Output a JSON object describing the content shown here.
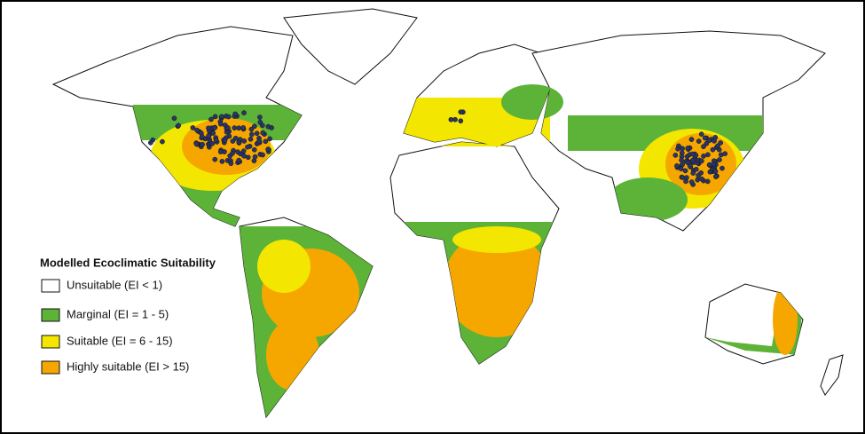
{
  "legend": {
    "title": "Modelled Ecoclimatic Suitability",
    "items": [
      {
        "label": "Unsuitable  (EI < 1)",
        "color": "#ffffff"
      },
      {
        "label": "Marginal (EI = 1 - 5)",
        "color": "#5cb338"
      },
      {
        "label": "Suitable (EI = 6 - 15)",
        "color": "#f3e600"
      },
      {
        "label": "Highly suitable (EI > 15)",
        "color": "#f5a700"
      }
    ]
  }
}
